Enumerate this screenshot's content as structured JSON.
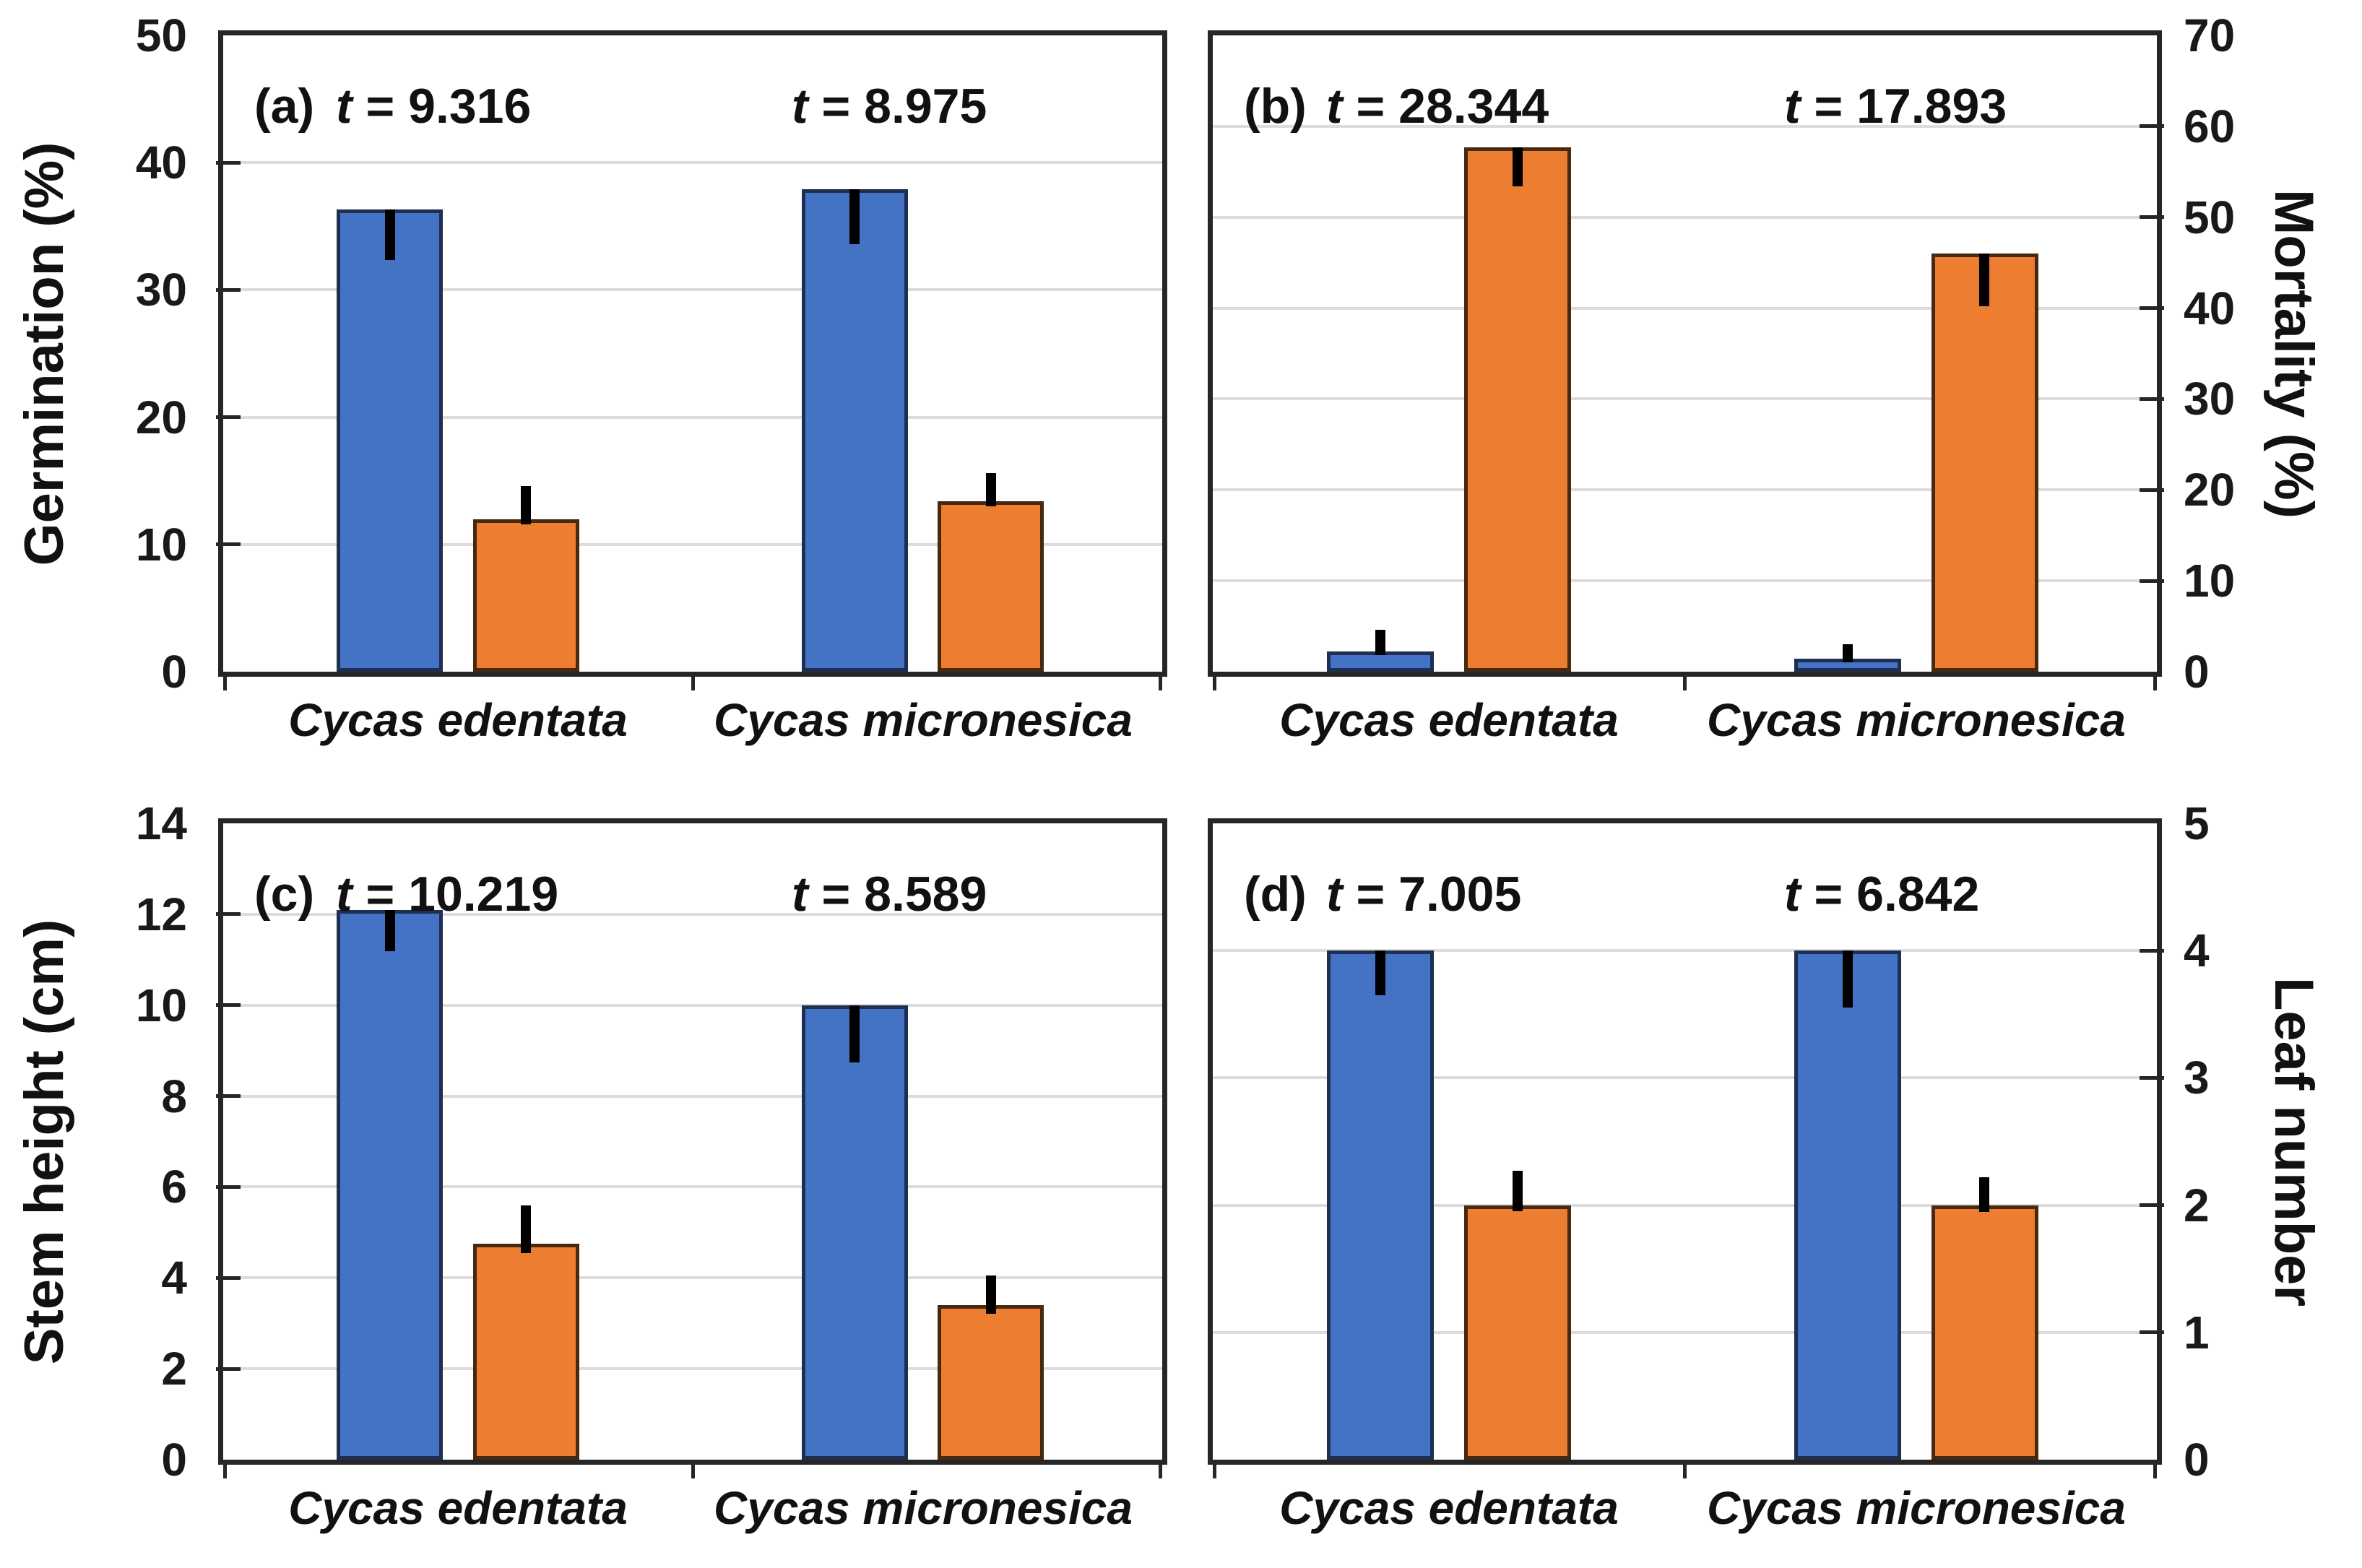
{
  "colors": {
    "blue_fill": "#4472C4",
    "blue_border": "#1F2F52",
    "orange_fill": "#ED7D31",
    "orange_border": "#47290F",
    "error_bar": "#000000",
    "gridline": "#DCDCDC",
    "frame": "#262626",
    "background": "#FFFFFF",
    "text": "#111111"
  },
  "chart_data": [
    {
      "type": "bar",
      "panel_label": "(a)",
      "ylabel": "Germination (%)",
      "y_axis_side": "left",
      "ylim": [
        0,
        50
      ],
      "ytick_step": 10,
      "yticks": [
        0,
        10,
        20,
        30,
        40,
        50
      ],
      "grid": true,
      "categories": [
        "Cycas edentata",
        "Cycas micronesica"
      ],
      "t_annotations": [
        "t = 9.316",
        "t = 8.975"
      ],
      "series": [
        {
          "name": "blue",
          "fill": "#4472C4",
          "border": "#1F2F52",
          "values": [
            36.3,
            37.9
          ],
          "error_low": [
            32.3,
            33.6
          ],
          "error_high": [
            36.3,
            37.9
          ]
        },
        {
          "name": "orange",
          "fill": "#ED7D31",
          "border": "#47290F",
          "values": [
            12.0,
            13.4
          ],
          "error_low": [
            11.6,
            13.0
          ],
          "error_high": [
            14.6,
            15.6
          ]
        }
      ]
    },
    {
      "type": "bar",
      "panel_label": "(b)",
      "ylabel": "Mortality (%)",
      "y_axis_side": "right",
      "ylim": [
        0,
        70
      ],
      "ytick_step": 10,
      "yticks": [
        0,
        10,
        20,
        30,
        40,
        50,
        60,
        70
      ],
      "grid": true,
      "categories": [
        "Cycas edentata",
        "Cycas micronesica"
      ],
      "t_annotations": [
        "t = 28.344",
        "t = 17.893"
      ],
      "series": [
        {
          "name": "blue",
          "fill": "#4472C4",
          "border": "#1F2F52",
          "values": [
            2.2,
            1.4
          ],
          "error_low": [
            1.8,
            1.0
          ],
          "error_high": [
            4.6,
            3.0
          ]
        },
        {
          "name": "orange",
          "fill": "#ED7D31",
          "border": "#47290F",
          "values": [
            57.7,
            46.0
          ],
          "error_low": [
            53.4,
            40.2
          ],
          "error_high": [
            57.7,
            46.0
          ]
        }
      ]
    },
    {
      "type": "bar",
      "panel_label": "(c)",
      "ylabel": "Stem height (cm)",
      "y_axis_side": "left",
      "ylim": [
        0,
        14
      ],
      "ytick_step": 2,
      "yticks": [
        0,
        2,
        4,
        6,
        8,
        10,
        12,
        14
      ],
      "grid": true,
      "categories": [
        "Cycas edentata",
        "Cycas micronesica"
      ],
      "t_annotations": [
        "t = 10.219",
        "t = 8.589"
      ],
      "series": [
        {
          "name": "blue",
          "fill": "#4472C4",
          "border": "#1F2F52",
          "values": [
            12.1,
            10.0
          ],
          "error_low": [
            11.2,
            8.75
          ],
          "error_high": [
            12.1,
            10.0
          ]
        },
        {
          "name": "orange",
          "fill": "#ED7D31",
          "border": "#47290F",
          "values": [
            4.75,
            3.4
          ],
          "error_low": [
            4.55,
            3.2
          ],
          "error_high": [
            5.6,
            4.05
          ]
        }
      ]
    },
    {
      "type": "bar",
      "panel_label": "(d)",
      "ylabel": "Leaf number",
      "y_axis_side": "right",
      "ylim": [
        0,
        5
      ],
      "ytick_step": 1,
      "yticks": [
        0,
        1,
        2,
        3,
        4,
        5
      ],
      "grid": true,
      "categories": [
        "Cycas edentata",
        "Cycas micronesica"
      ],
      "t_annotations": [
        "t = 7.005",
        "t = 6.842"
      ],
      "series": [
        {
          "name": "blue",
          "fill": "#4472C4",
          "border": "#1F2F52",
          "values": [
            4.0,
            4.0
          ],
          "error_low": [
            3.65,
            3.55
          ],
          "error_high": [
            4.0,
            4.0
          ]
        },
        {
          "name": "orange",
          "fill": "#ED7D31",
          "border": "#47290F",
          "values": [
            2.0,
            2.0
          ],
          "error_low": [
            1.95,
            1.95
          ],
          "error_high": [
            2.27,
            2.22
          ]
        }
      ]
    }
  ]
}
